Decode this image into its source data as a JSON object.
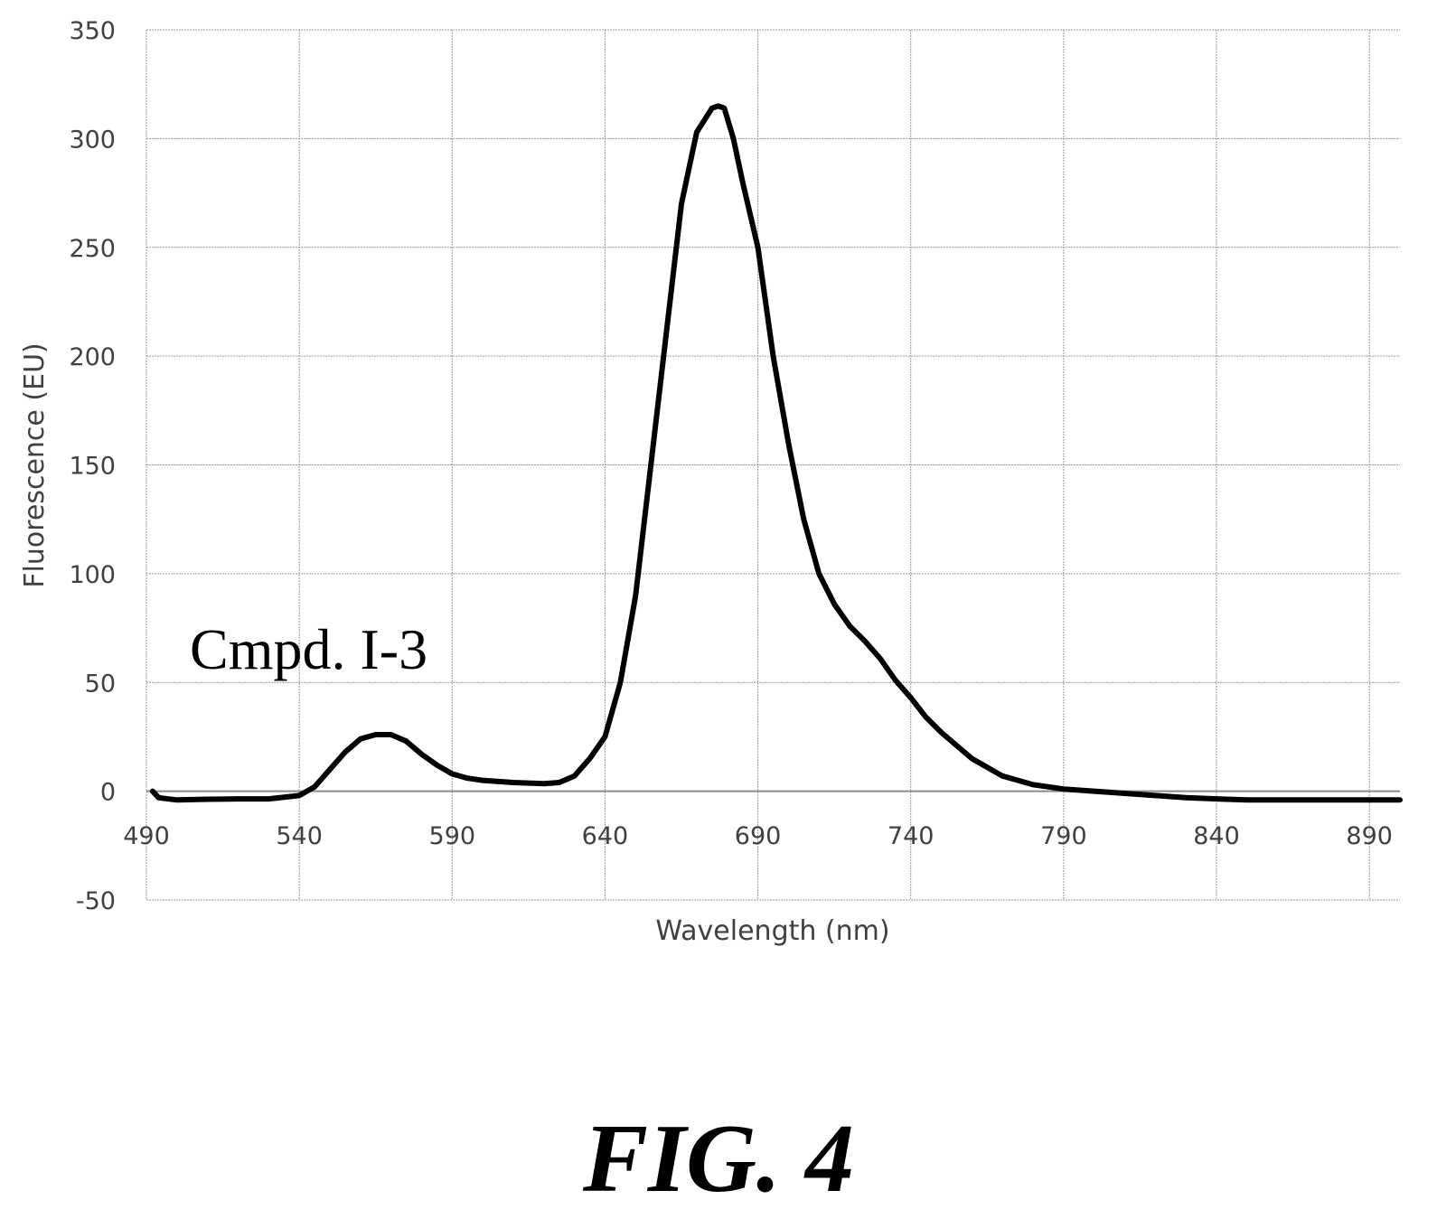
{
  "chart_data": {
    "type": "line",
    "title": "",
    "xlabel": "Wavelength (nm)",
    "ylabel": "Fluorescence (EU)",
    "xlim": [
      490,
      900
    ],
    "ylim": [
      -50,
      350
    ],
    "x_ticks": [
      490,
      540,
      590,
      640,
      690,
      740,
      790,
      840,
      890
    ],
    "y_ticks": [
      -50,
      0,
      50,
      100,
      150,
      200,
      250,
      300,
      350
    ],
    "grid": true,
    "legend": "none",
    "annotations": [
      "Cmpd. I-3"
    ],
    "line_color": "#000000",
    "series": [
      {
        "x": [
          492,
          494,
          500,
          510,
          520,
          530,
          540,
          545,
          550,
          555,
          560,
          565,
          570,
          575,
          580,
          585,
          590,
          595,
          600,
          610,
          620,
          625,
          630,
          635,
          640,
          645,
          650,
          655,
          660,
          665,
          670,
          675,
          677,
          679,
          682,
          685,
          690,
          695,
          700,
          705,
          710,
          715,
          720,
          725,
          730,
          735,
          740,
          745,
          750,
          760,
          770,
          780,
          790,
          800,
          810,
          820,
          830,
          840,
          850,
          860,
          870,
          880,
          890,
          900
        ],
        "y": [
          0,
          -3,
          -4,
          -3.7,
          -3.5,
          -3.5,
          -2,
          2,
          10,
          18,
          24,
          26,
          26,
          23,
          17,
          12,
          8,
          6,
          5,
          4,
          3.5,
          4,
          7,
          15,
          25,
          50,
          90,
          150,
          210,
          270,
          303,
          314,
          315,
          314,
          300,
          280,
          250,
          200,
          160,
          125,
          100,
          86,
          76,
          69,
          61,
          51,
          43,
          34,
          27,
          15,
          7,
          3,
          1,
          0,
          -1,
          -2,
          -3,
          -3.5,
          -4,
          -4,
          -4,
          -4,
          -4,
          -4
        ]
      }
    ]
  },
  "figure": {
    "caption": "FIG. 4"
  }
}
